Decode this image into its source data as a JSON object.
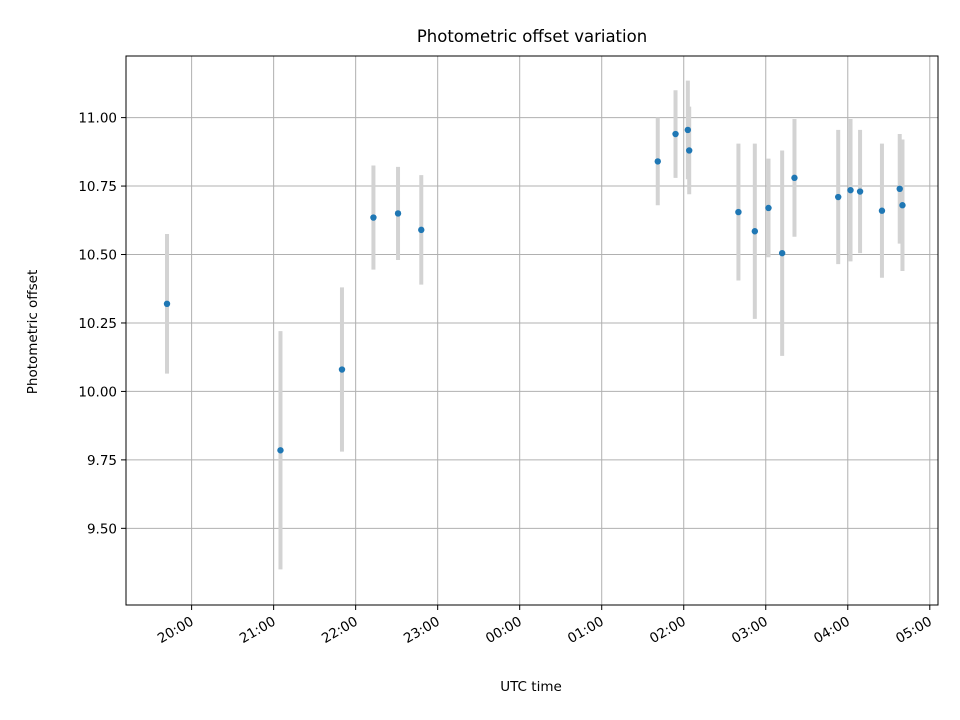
{
  "chart_data": {
    "type": "scatter",
    "title": "Photometric offset variation",
    "xlabel": "UTC time",
    "ylabel": "Photometric offset",
    "x_axis": "time",
    "xlim": [
      "19:12",
      "05:06"
    ],
    "ylim": [
      9.22,
      11.225
    ],
    "x_ticks": [
      "20:00",
      "21:00",
      "22:00",
      "23:00",
      "00:00",
      "01:00",
      "02:00",
      "03:00",
      "04:00",
      "05:00"
    ],
    "y_ticks": [
      9.5,
      9.75,
      10.0,
      10.25,
      10.5,
      10.75,
      11.0
    ],
    "y_tick_labels": [
      "9.50",
      "9.75",
      "10.00",
      "10.25",
      "10.50",
      "10.75",
      "11.00"
    ],
    "grid": true,
    "series": [
      {
        "marker_color": "#1f77b4",
        "errorbar_color": "#d3d3d3",
        "points": [
          {
            "t": "19:42",
            "y": 10.32,
            "err": 0.255
          },
          {
            "t": "21:05",
            "y": 9.785,
            "err": 0.435
          },
          {
            "t": "21:50",
            "y": 10.08,
            "err": 0.3
          },
          {
            "t": "22:13",
            "y": 10.635,
            "err": 0.19
          },
          {
            "t": "22:31",
            "y": 10.65,
            "err": 0.17
          },
          {
            "t": "22:48",
            "y": 10.59,
            "err": 0.2
          },
          {
            "t": "01:41",
            "y": 10.84,
            "err": 0.16
          },
          {
            "t": "01:54",
            "y": 10.94,
            "err": 0.16
          },
          {
            "t": "02:03",
            "y": 10.955,
            "err": 0.18
          },
          {
            "t": "02:04",
            "y": 10.88,
            "err": 0.16
          },
          {
            "t": "02:40",
            "y": 10.655,
            "err": 0.25
          },
          {
            "t": "02:52",
            "y": 10.585,
            "err": 0.32
          },
          {
            "t": "03:02",
            "y": 10.67,
            "err": 0.18
          },
          {
            "t": "03:12",
            "y": 10.505,
            "err": 0.375
          },
          {
            "t": "03:21",
            "y": 10.78,
            "err": 0.215
          },
          {
            "t": "03:53",
            "y": 10.71,
            "err": 0.245
          },
          {
            "t": "04:02",
            "y": 10.735,
            "err": 0.26
          },
          {
            "t": "04:09",
            "y": 10.73,
            "err": 0.225
          },
          {
            "t": "04:25",
            "y": 10.66,
            "err": 0.245
          },
          {
            "t": "04:38",
            "y": 10.74,
            "err": 0.2
          },
          {
            "t": "04:40",
            "y": 10.68,
            "err": 0.24
          }
        ]
      }
    ]
  }
}
